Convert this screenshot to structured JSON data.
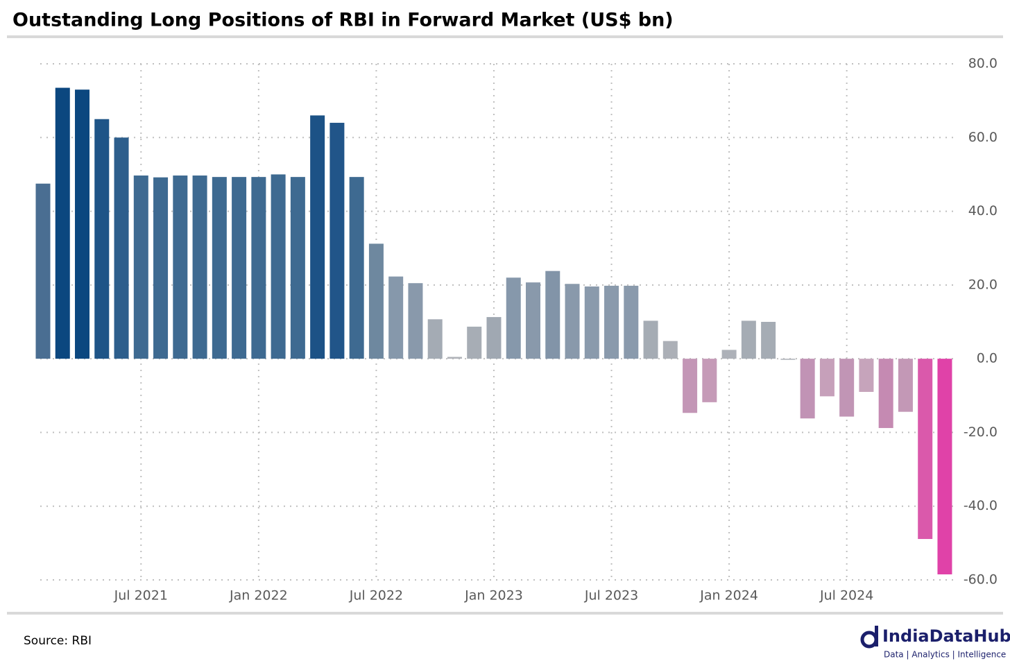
{
  "chart_data": {
    "type": "bar",
    "title": "Outstanding Long Positions of RBI in Forward Market (US$ bn)",
    "source": "Source: RBI",
    "categories": [
      null,
      null,
      null,
      null,
      null,
      "Jul 2021",
      null,
      null,
      null,
      null,
      null,
      "Jan 2022",
      null,
      null,
      null,
      null,
      null,
      "Jul 2022",
      null,
      null,
      null,
      null,
      null,
      "Jan 2023",
      null,
      null,
      null,
      null,
      null,
      "Jul 2023",
      null,
      null,
      null,
      null,
      null,
      "Jan 2024",
      null,
      null,
      null,
      null,
      null,
      "Jul 2024",
      null,
      null,
      null,
      null,
      null
    ],
    "values": [
      47.5,
      73.5,
      73,
      65,
      60,
      49.7,
      49.2,
      49.7,
      49.7,
      49.3,
      49.3,
      49.3,
      50,
      49.3,
      66,
      64,
      49.3,
      31.2,
      22.3,
      20.5,
      10.7,
      0.5,
      8.7,
      11.3,
      22,
      20.7,
      23.8,
      20.3,
      19.6,
      19.8,
      19.8,
      10.3,
      4.8,
      -14.7,
      -11.8,
      2.4,
      10.3,
      10,
      -0.3,
      -16.2,
      -10.2,
      -15.7,
      -9,
      -18.8,
      -14.4,
      -48.9,
      -58.5
    ],
    "colors": [
      "#4a6e92",
      "#0b477f",
      "#0b477f",
      "#1e5487",
      "#2d5e8c",
      "#3e6a91",
      "#3e6a91",
      "#3e6a91",
      "#3e6a91",
      "#3e6a91",
      "#3e6a91",
      "#3e6a91",
      "#3e6a91",
      "#3e6a91",
      "#1c5286",
      "#215589",
      "#3e6a91",
      "#6e889f",
      "#8698ab",
      "#8999ab",
      "#a4abb4",
      "#b0b3b9",
      "#a7adb5",
      "#a0a8b2",
      "#8698ab",
      "#8999ab",
      "#8294a8",
      "#8999ab",
      "#8a9aac",
      "#8a9aac",
      "#8a9aac",
      "#a5acb4",
      "#acb0b7",
      "#c396b6",
      "#c59ab7",
      "#adb1b8",
      "#a5acb4",
      "#a5acb4",
      "#b0b3b9",
      "#c193b5",
      "#c6a0ba",
      "#c195b5",
      "#c6a4bb",
      "#c58ab2",
      "#c398b6",
      "#da59ab",
      "#e042a8"
    ],
    "ylim": [
      -60,
      80
    ],
    "yticks": [
      {
        "value": 80,
        "label": "80.0"
      },
      {
        "value": 60,
        "label": "60.0"
      },
      {
        "value": 40,
        "label": "40.0"
      },
      {
        "value": 20,
        "label": "20.0"
      },
      {
        "value": 0,
        "label": "0.0"
      },
      {
        "value": -20,
        "label": "-20.0"
      },
      {
        "value": -40,
        "label": "-40.0"
      },
      {
        "value": -60,
        "label": "-60.0"
      }
    ],
    "grid": true
  },
  "logo": {
    "name": "IndiaDataHub",
    "tagline": "Data | Analytics | Intelligence"
  }
}
